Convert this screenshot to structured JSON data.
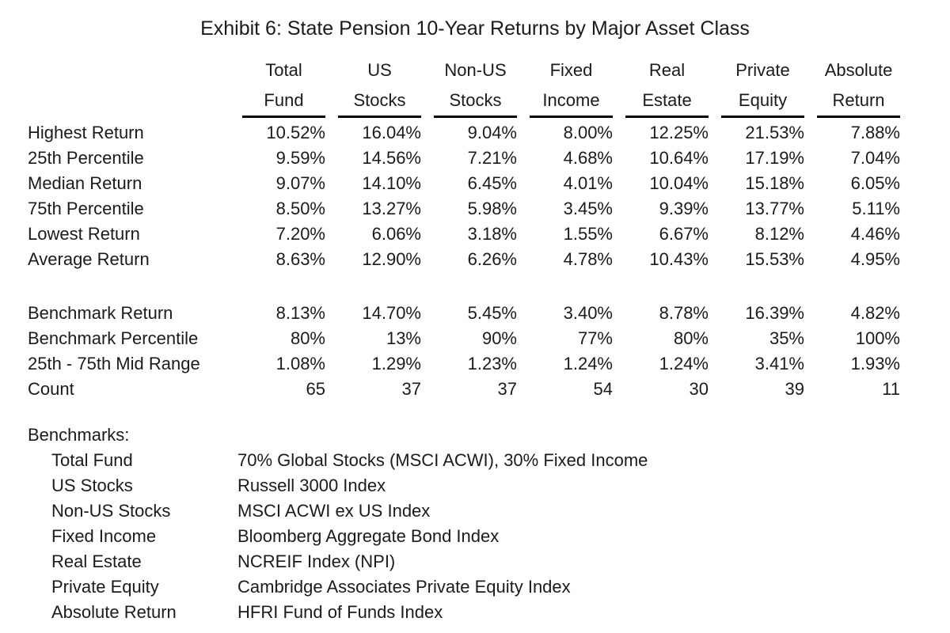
{
  "title": "Exhibit 6: State Pension 10-Year Returns by Major Asset Class",
  "table": {
    "columns": [
      {
        "line1": "Total",
        "line2": "Fund"
      },
      {
        "line1": "US",
        "line2": "Stocks"
      },
      {
        "line1": "Non-US",
        "line2": "Stocks"
      },
      {
        "line1": "Fixed",
        "line2": "Income"
      },
      {
        "line1": "Real",
        "line2": "Estate"
      },
      {
        "line1": "Private",
        "line2": "Equity"
      },
      {
        "line1": "Absolute",
        "line2": "Return"
      }
    ],
    "stat_rows": [
      {
        "label": "Highest Return",
        "values": [
          "10.52%",
          "16.04%",
          "9.04%",
          "8.00%",
          "12.25%",
          "21.53%",
          "7.88%"
        ]
      },
      {
        "label": "25th Percentile",
        "values": [
          "9.59%",
          "14.56%",
          "7.21%",
          "4.68%",
          "10.64%",
          "17.19%",
          "7.04%"
        ]
      },
      {
        "label": "Median Return",
        "values": [
          "9.07%",
          "14.10%",
          "6.45%",
          "4.01%",
          "10.04%",
          "15.18%",
          "6.05%"
        ]
      },
      {
        "label": "75th Percentile",
        "values": [
          "8.50%",
          "13.27%",
          "5.98%",
          "3.45%",
          "9.39%",
          "13.77%",
          "5.11%"
        ]
      },
      {
        "label": "Lowest Return",
        "values": [
          "7.20%",
          "6.06%",
          "3.18%",
          "1.55%",
          "6.67%",
          "8.12%",
          "4.46%"
        ]
      },
      {
        "label": "Average Return",
        "values": [
          "8.63%",
          "12.90%",
          "6.26%",
          "4.78%",
          "10.43%",
          "15.53%",
          "4.95%"
        ]
      }
    ],
    "benchmark_rows": [
      {
        "label": "Benchmark Return",
        "values": [
          "8.13%",
          "14.70%",
          "5.45%",
          "3.40%",
          "8.78%",
          "16.39%",
          "4.82%"
        ]
      },
      {
        "label": "Benchmark Percentile",
        "values": [
          "80%",
          "13%",
          "90%",
          "77%",
          "80%",
          "35%",
          "100%"
        ]
      },
      {
        "label": "25th - 75th Mid Range",
        "values": [
          "1.08%",
          "1.29%",
          "1.23%",
          "1.24%",
          "1.24%",
          "3.41%",
          "1.93%"
        ]
      },
      {
        "label": "Count",
        "values": [
          "65",
          "37",
          "37",
          "54",
          "30",
          "39",
          "11"
        ]
      }
    ]
  },
  "benchmarks": {
    "heading": "Benchmarks:",
    "items": [
      {
        "name": "Total Fund",
        "description": "70% Global Stocks (MSCI ACWI), 30% Fixed Income"
      },
      {
        "name": "US Stocks",
        "description": "Russell 3000 Index"
      },
      {
        "name": "Non-US Stocks",
        "description": "MSCI ACWI ex US Index"
      },
      {
        "name": "Fixed Income",
        "description": "Bloomberg Aggregate Bond Index"
      },
      {
        "name": "Real Estate",
        "description": "NCREIF Index (NPI)"
      },
      {
        "name": "Private Equity",
        "description": "Cambridge Associates Private Equity Index"
      },
      {
        "name": "Absolute Return",
        "description": "HFRI Fund of Funds Index"
      }
    ]
  },
  "colors": {
    "text": "#1b1b1b",
    "background": "#ffffff",
    "rule": "#000000"
  }
}
